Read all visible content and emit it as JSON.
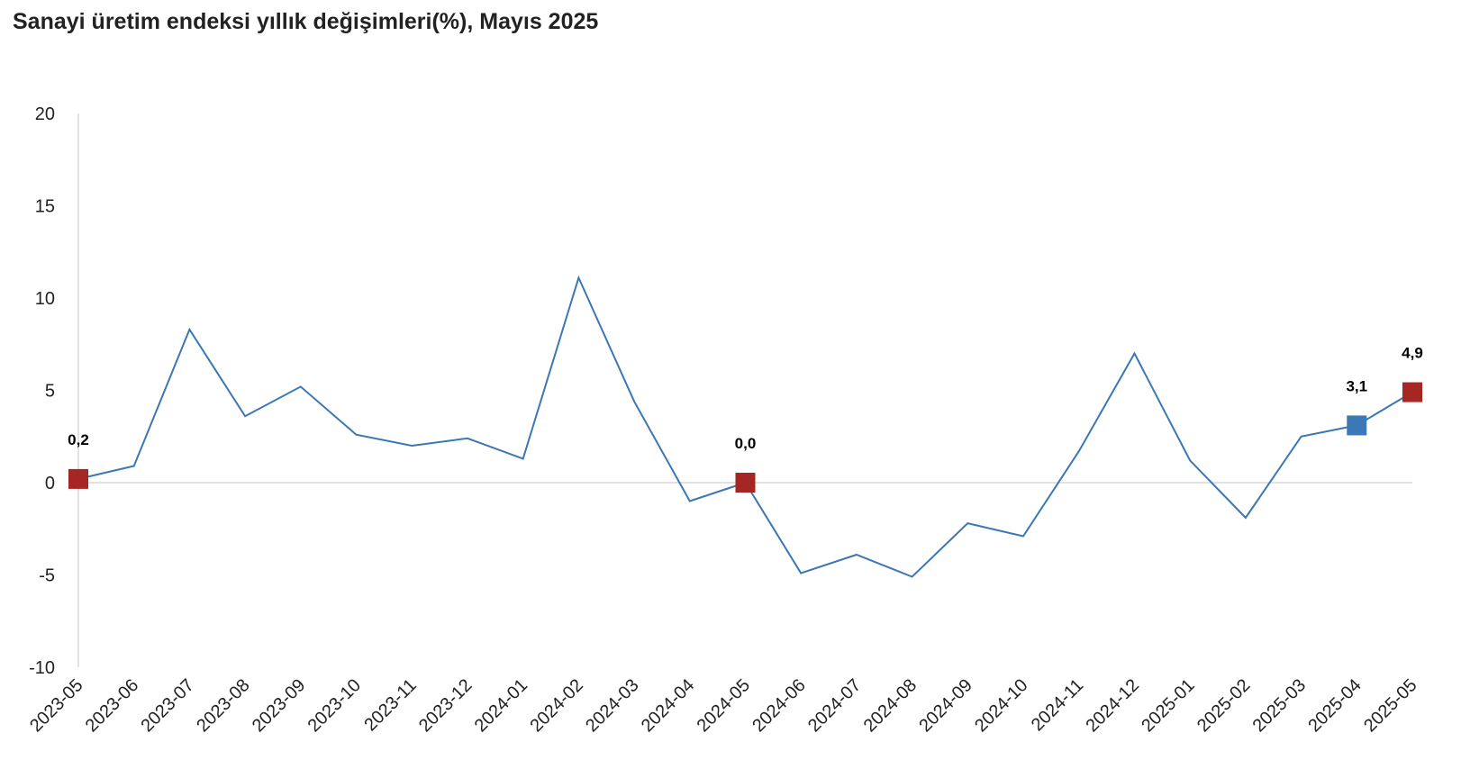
{
  "chart_data": {
    "type": "line",
    "title": "Sanayi üretim endeksi yıllık değişimleri(%), Mayıs 2025",
    "xlabel": "",
    "ylabel": "",
    "ylim": [
      -10,
      20
    ],
    "yticks": [
      "20",
      "15",
      "10",
      "5",
      "0",
      "-5",
      "-10"
    ],
    "ytick_values": [
      20,
      15,
      10,
      5,
      0,
      -5,
      -10
    ],
    "categories": [
      "2023-05",
      "2023-06",
      "2023-07",
      "2023-08",
      "2023-09",
      "2023-10",
      "2023-11",
      "2023-12",
      "2024-01",
      "2024-02",
      "2024-03",
      "2024-04",
      "2024-05",
      "2024-06",
      "2024-07",
      "2024-08",
      "2024-09",
      "2024-10",
      "2024-11",
      "2024-12",
      "2025-01",
      "2025-02",
      "2025-03",
      "2025-04",
      "2025-05"
    ],
    "series": [
      {
        "values": [
          0.2,
          0.9,
          8.3,
          3.6,
          5.2,
          2.6,
          2.0,
          2.4,
          1.3,
          11.1,
          4.4,
          -1.0,
          0.0,
          -4.9,
          -3.9,
          -5.1,
          -2.2,
          -2.9,
          1.7,
          7.0,
          1.2,
          -1.9,
          2.5,
          3.1,
          4.9
        ],
        "color": "#3b77b5"
      }
    ],
    "highlights": [
      {
        "index": 0,
        "label": "0,2",
        "color": "#a52622"
      },
      {
        "index": 12,
        "label": "0,0",
        "color": "#a52622"
      },
      {
        "index": 23,
        "label": "3,1",
        "color": "#3b78b6"
      },
      {
        "index": 24,
        "label": "4,9",
        "color": "#a52622"
      }
    ],
    "grid": false,
    "legend": "none"
  }
}
